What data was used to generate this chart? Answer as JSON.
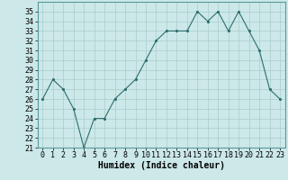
{
  "x": [
    0,
    1,
    2,
    3,
    4,
    5,
    6,
    7,
    8,
    9,
    10,
    11,
    12,
    13,
    14,
    15,
    16,
    17,
    18,
    19,
    20,
    21,
    22,
    23
  ],
  "y": [
    26,
    28,
    27,
    25,
    21,
    24,
    24,
    26,
    27,
    28,
    30,
    32,
    33,
    33,
    33,
    35,
    34,
    35,
    33,
    35,
    33,
    31,
    27,
    26
  ],
  "xlabel": "Humidex (Indice chaleur)",
  "ylim": [
    21,
    36
  ],
  "yticks": [
    21,
    22,
    23,
    24,
    25,
    26,
    27,
    28,
    29,
    30,
    31,
    32,
    33,
    34,
    35
  ],
  "xticks": [
    0,
    1,
    2,
    3,
    4,
    5,
    6,
    7,
    8,
    9,
    10,
    11,
    12,
    13,
    14,
    15,
    16,
    17,
    18,
    19,
    20,
    21,
    22,
    23
  ],
  "line_color": "#2d6e6e",
  "marker_color": "#2d6e6e",
  "bg_color": "#cce8e8",
  "grid_color": "#aacccc",
  "axis_label_fontsize": 7,
  "tick_fontsize": 6
}
